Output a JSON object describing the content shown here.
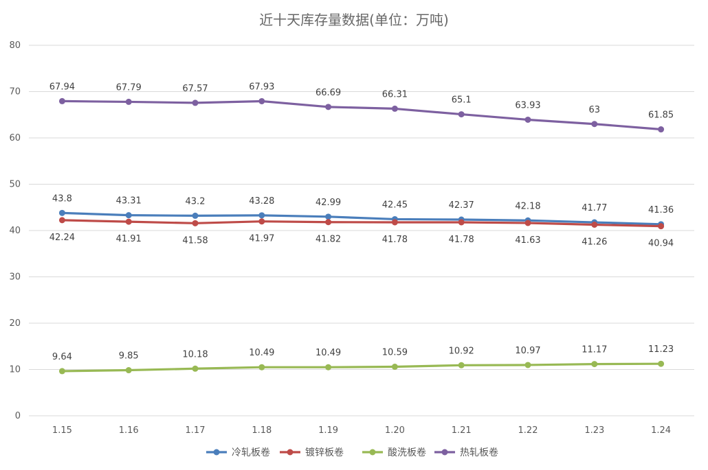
{
  "chart_data": {
    "type": "line",
    "title": "近十天库存量数据(单位：万吨)",
    "xlabel": "",
    "ylabel": "",
    "categories": [
      "1.15",
      "1.16",
      "1.17",
      "1.18",
      "1.19",
      "1.20",
      "1.21",
      "1.22",
      "1.23",
      "1.24"
    ],
    "ylim": [
      0,
      80
    ],
    "yticks": [
      0,
      10,
      20,
      30,
      40,
      50,
      60,
      70,
      80
    ],
    "grid": true,
    "legend_position": "bottom",
    "series": [
      {
        "name": "冷轧板卷",
        "color": "#4a7ebb",
        "label_pos": "above",
        "values": [
          43.8,
          43.31,
          43.2,
          43.28,
          42.99,
          42.45,
          42.37,
          42.18,
          41.77,
          41.36
        ],
        "labels": [
          "43.8",
          "43.31",
          "43.2",
          "43.28",
          "42.99",
          "42.45",
          "42.37",
          "42.18",
          "41.77",
          "41.36"
        ]
      },
      {
        "name": "镀锌板卷",
        "color": "#be4b48",
        "label_pos": "below",
        "values": [
          42.24,
          41.91,
          41.58,
          41.97,
          41.82,
          41.78,
          41.78,
          41.63,
          41.26,
          40.94
        ],
        "labels": [
          "42.24",
          "41.91",
          "41.58",
          "41.97",
          "41.82",
          "41.78",
          "41.78",
          "41.63",
          "41.26",
          "40.94"
        ]
      },
      {
        "name": "酸洗板卷",
        "color": "#98b954",
        "label_pos": "above",
        "values": [
          9.64,
          9.85,
          10.18,
          10.49,
          10.49,
          10.59,
          10.92,
          10.97,
          11.17,
          11.23
        ],
        "labels": [
          "9.64",
          "9.85",
          "10.18",
          "10.49",
          "10.49",
          "10.59",
          "10.92",
          "10.97",
          "11.17",
          "11.23"
        ]
      },
      {
        "name": "热轧板卷",
        "color": "#7d60a0",
        "label_pos": "above",
        "values": [
          67.94,
          67.79,
          67.57,
          67.93,
          66.69,
          66.31,
          65.1,
          63.93,
          63,
          61.85
        ],
        "labels": [
          "67.94",
          "67.79",
          "67.57",
          "67.93",
          "66.69",
          "66.31",
          "65.1",
          "63.93",
          "63",
          "61.85"
        ]
      }
    ]
  }
}
